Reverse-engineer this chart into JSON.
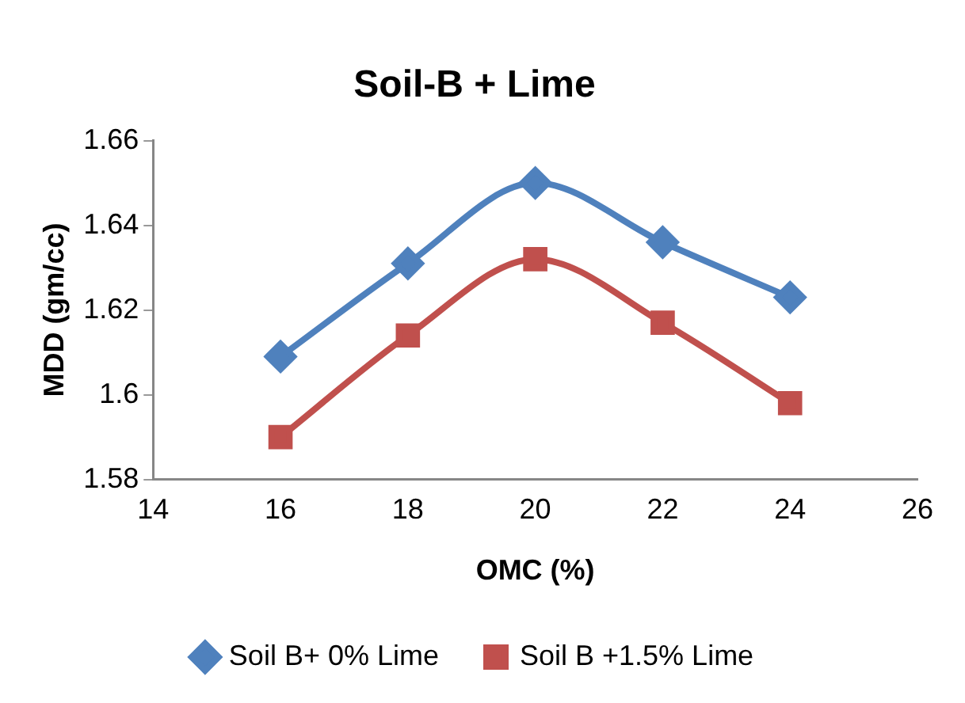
{
  "chart_data": {
    "type": "line",
    "title": "Soil-B + Lime",
    "xlabel": "OMC (%)",
    "ylabel": "MDD (gm/cc)",
    "x": [
      16,
      18,
      20,
      22,
      24
    ],
    "series": [
      {
        "name": "Soil B+ 0% Lime",
        "color": "#4f81bd",
        "marker": "diamond",
        "values": [
          1.609,
          1.631,
          1.65,
          1.636,
          1.623
        ]
      },
      {
        "name": "Soil B +1.5% Lime",
        "color": "#c0504d",
        "marker": "square",
        "values": [
          1.59,
          1.614,
          1.632,
          1.617,
          1.598
        ]
      }
    ],
    "xlim": [
      14,
      26
    ],
    "xticks": [
      14,
      16,
      18,
      20,
      22,
      24,
      26
    ],
    "ylim": [
      1.58,
      1.66
    ],
    "yticks": [
      1.58,
      1.6,
      1.62,
      1.64,
      1.66
    ],
    "grid": false,
    "legend": "bottom",
    "line_style": "solid"
  }
}
